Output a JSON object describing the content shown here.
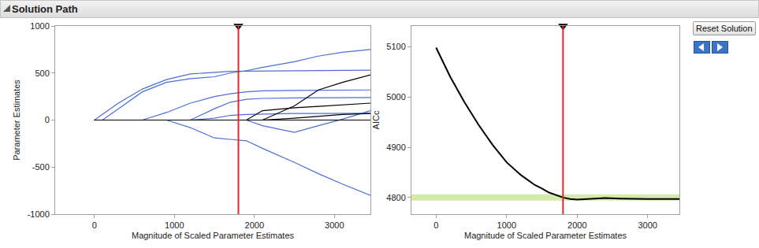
{
  "header": "Solution Path",
  "button": "Reset Solution",
  "chart_data": [
    {
      "type": "line",
      "xlabel": "Magnitude of Scaled Parameter Estimates",
      "ylabel": "Parameter Estimates",
      "x": [
        0,
        100,
        300,
        600,
        900,
        1200,
        1500,
        1700,
        1900,
        2100,
        2500,
        2800,
        3100,
        3450
      ],
      "series": [
        {
          "color": "#4a6fd8",
          "values": [
            0,
            60,
            180,
            330,
            430,
            490,
            510,
            518,
            520,
            522,
            525,
            527,
            528,
            530
          ]
        },
        {
          "color": "#4a6fd8",
          "values": [
            0,
            0,
            120,
            300,
            400,
            440,
            460,
            500,
            525,
            560,
            620,
            680,
            720,
            750
          ]
        },
        {
          "color": "#4a6fd8",
          "values": [
            0,
            0,
            0,
            0,
            80,
            180,
            250,
            280,
            300,
            310,
            315,
            318,
            320,
            320
          ]
        },
        {
          "color": "#4a6fd8",
          "values": [
            0,
            0,
            0,
            0,
            0,
            0,
            120,
            190,
            220,
            230,
            235,
            238,
            240,
            240
          ]
        },
        {
          "color": "#4a6fd8",
          "values": [
            0,
            0,
            0,
            0,
            0,
            0,
            20,
            50,
            60,
            65,
            70,
            70,
            70,
            72
          ]
        },
        {
          "color": "#4a6fd8",
          "values": [
            0,
            0,
            0,
            0,
            0,
            -80,
            -190,
            -205,
            -220,
            -300,
            -450,
            -570,
            -680,
            -800
          ]
        },
        {
          "color": "#4a6fd8",
          "values": [
            0,
            0,
            0,
            0,
            0,
            0,
            0,
            0,
            0,
            -60,
            -130,
            -60,
            10,
            100
          ]
        },
        {
          "color": "#000000",
          "values": [
            0,
            0,
            0,
            0,
            0,
            0,
            0,
            0,
            0,
            0,
            150,
            320,
            400,
            480
          ]
        },
        {
          "color": "#000000",
          "values": [
            0,
            0,
            0,
            0,
            0,
            0,
            0,
            0,
            0,
            100,
            130,
            145,
            160,
            180
          ]
        },
        {
          "color": "#000000",
          "values": [
            0,
            0,
            0,
            0,
            0,
            0,
            0,
            0,
            0,
            0,
            20,
            40,
            60,
            70
          ]
        },
        {
          "color": "#000000",
          "values": [
            0,
            0,
            0,
            0,
            0,
            0,
            0,
            0,
            0,
            0,
            0,
            0,
            0,
            0
          ]
        }
      ],
      "xlim": [
        -490,
        3450
      ],
      "xticks": [
        0,
        1000,
        2000,
        3000
      ],
      "ylim": [
        -1000,
        1000
      ],
      "yticks": [
        -1000,
        -500,
        0,
        500,
        1000
      ],
      "grid": false,
      "reference_line": {
        "x": 1800,
        "color": "#e3262e"
      }
    },
    {
      "type": "line",
      "xlabel": "Magnitude of Scaled Parameter Estimates",
      "ylabel": "AICc",
      "x": [
        0,
        200,
        400,
        600,
        800,
        1000,
        1200,
        1400,
        1500,
        1600,
        1800,
        1900,
        2000,
        2200,
        2400,
        2600,
        2800,
        3000,
        3450
      ],
      "values": [
        5098,
        5040,
        4990,
        4945,
        4905,
        4870,
        4845,
        4825,
        4818,
        4810,
        4800,
        4797,
        4796,
        4797,
        4799,
        4798,
        4797,
        4797,
        4797
      ],
      "color": "#000000",
      "xlim": [
        -350,
        3450
      ],
      "xticks": [
        0,
        1000,
        2000,
        3000
      ],
      "ylim": [
        4767,
        5141
      ],
      "yticks": [
        4800,
        4900,
        5000,
        5100
      ],
      "grid": false,
      "band": [
        4794,
        4806
      ],
      "reference_line": {
        "x": 1800,
        "color": "#e3262e"
      }
    }
  ]
}
